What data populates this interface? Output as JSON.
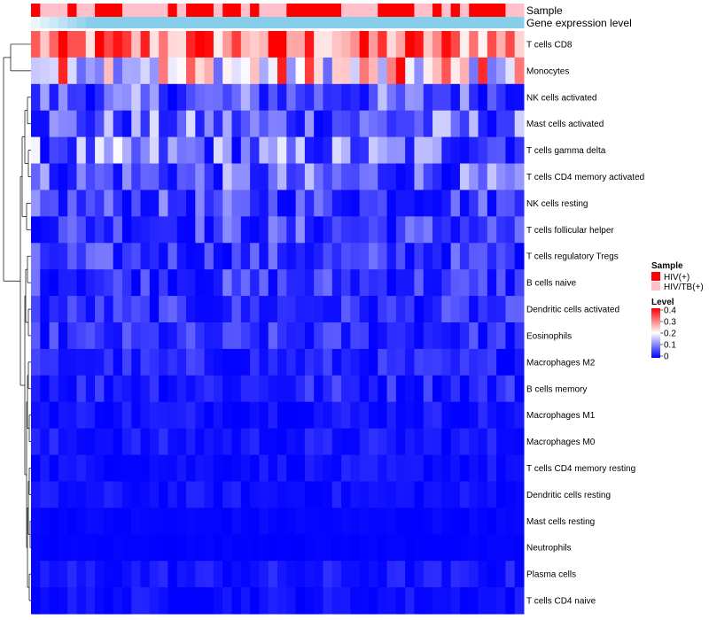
{
  "chart_data": {
    "type": "heatmap",
    "annotations": [
      {
        "name": "Sample",
        "pattern": "RPPPRPPRRRPPPPPRPRRRPRRPRPPPRRRRRRPPPPRRRRPPRPRPRRRRPP"
      },
      {
        "name": "Gene expression level",
        "pattern": ""
      }
    ],
    "row_labels": [
      "T cells CD8",
      "Monocytes",
      "NK cells activated",
      "Mast cells activated",
      "T cells gamma delta",
      "T cells CD4 memory activated",
      "NK cells resting",
      "T cells follicular helper",
      "T cells regulatory  Tregs",
      "B cells naive",
      "Dendritic cells activated",
      "Eosinophils",
      "Macrophages M2",
      "B cells memory",
      "Macrophages M1",
      "Macrophages M0",
      "T cells CD4 memory resting",
      "Dendritic cells resting",
      "Mast cells resting",
      "Neutrophils",
      "Plasma cells",
      "T cells CD4 naive"
    ],
    "num_columns": 54,
    "row_ranges": [
      [
        0.2,
        0.45
      ],
      [
        0.08,
        0.4
      ],
      [
        0.0,
        0.16
      ],
      [
        0.0,
        0.18
      ],
      [
        0.0,
        0.2
      ],
      [
        0.0,
        0.16
      ],
      [
        0.0,
        0.12
      ],
      [
        0.0,
        0.12
      ],
      [
        0.0,
        0.1
      ],
      [
        0.0,
        0.1
      ],
      [
        0.0,
        0.08
      ],
      [
        0.0,
        0.08
      ],
      [
        0.0,
        0.06
      ],
      [
        0.0,
        0.07
      ],
      [
        0.0,
        0.04
      ],
      [
        0.0,
        0.04
      ],
      [
        0.0,
        0.03
      ],
      [
        0.0,
        0.03
      ],
      [
        0.0,
        0.01
      ],
      [
        0.0,
        0.005
      ],
      [
        0.0,
        0.04
      ],
      [
        0.0,
        0.03
      ]
    ],
    "legend": {
      "sample_title": "Sample",
      "sample_entries": [
        {
          "label": "HIV(+)",
          "color": "#ff0000"
        },
        {
          "label": "HIV/TB(+)",
          "color": "#ffc0cb"
        }
      ],
      "level_title": "Level",
      "level_ticks": [
        "0.4",
        "0.3",
        "0.2",
        "0.1",
        "0"
      ],
      "level_min": 0,
      "level_max": 0.4
    },
    "colors": {
      "low": "#0000ff",
      "mid": "#ffffff",
      "high": "#ff0000",
      "gene_expression": "#87ceeb",
      "hiv": "#ff0000",
      "hiv_tb": "#ffc0cb"
    }
  }
}
